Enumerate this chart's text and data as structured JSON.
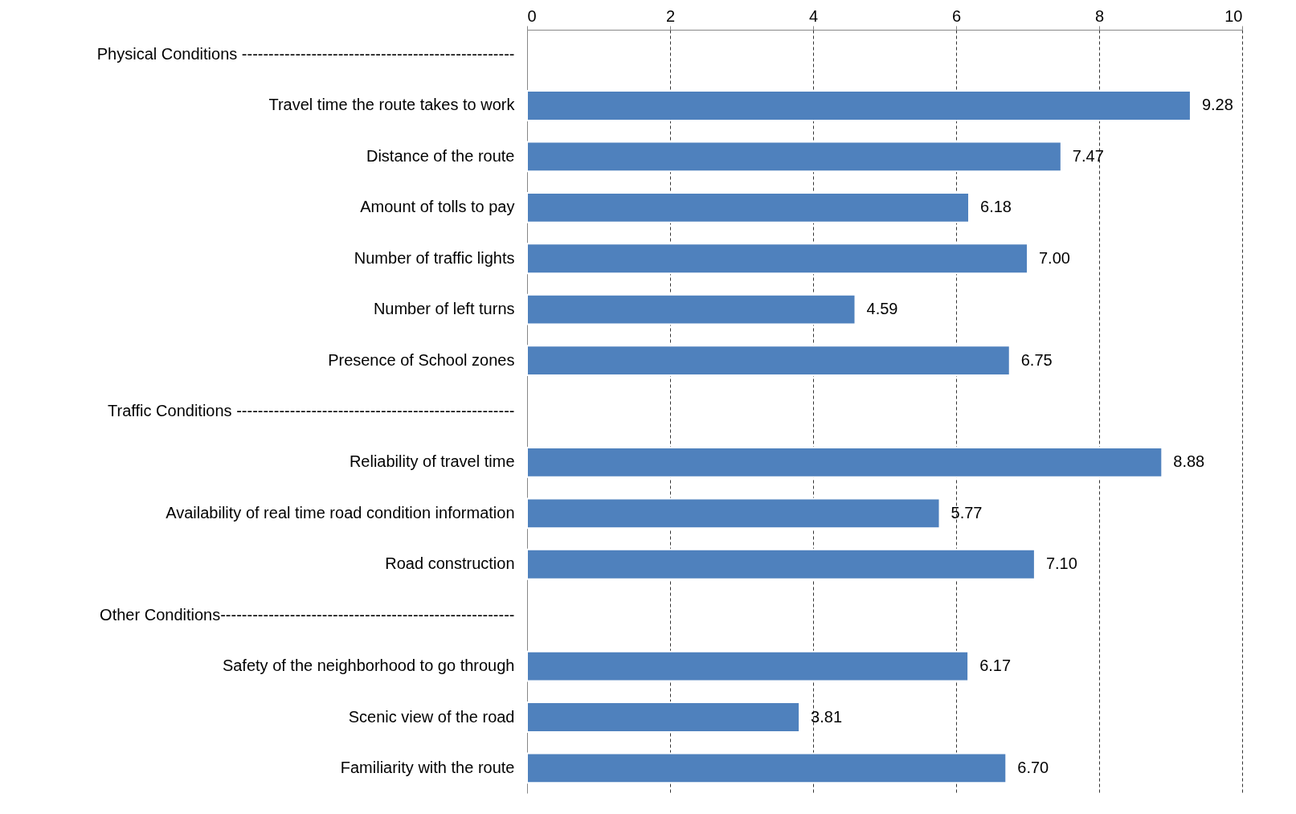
{
  "chart_data": {
    "type": "bar",
    "orientation": "horizontal",
    "categories": [
      "Physical Conditions ---------------------------------------------------",
      "Travel time the route takes to work",
      "Distance of the route",
      "Amount of tolls to pay",
      "Number of traffic lights",
      "Number of left turns",
      "Presence of School zones",
      "Traffic Conditions ----------------------------------------------------",
      "Reliability of travel time",
      "Availability of real time road condition information",
      "Road construction",
      "Other Conditions-------------------------------------------------------",
      "Safety of the neighborhood to go through",
      "Scenic view of the road",
      "Familiarity with the route"
    ],
    "values": [
      null,
      9.28,
      7.47,
      6.18,
      7.0,
      4.59,
      6.75,
      null,
      8.88,
      5.77,
      7.1,
      null,
      6.17,
      3.81,
      6.7
    ],
    "value_labels": [
      null,
      "9.28",
      "7.47",
      "6.18",
      "7.00",
      "4.59",
      "6.75",
      null,
      "8.88",
      "5.77",
      "7.10",
      null,
      "6.17",
      "3.81",
      "6.70"
    ],
    "color": "#4f81bd",
    "xlim": [
      0,
      10
    ],
    "xticks": [
      0,
      2,
      4,
      6,
      8,
      10
    ],
    "grid": "x"
  }
}
